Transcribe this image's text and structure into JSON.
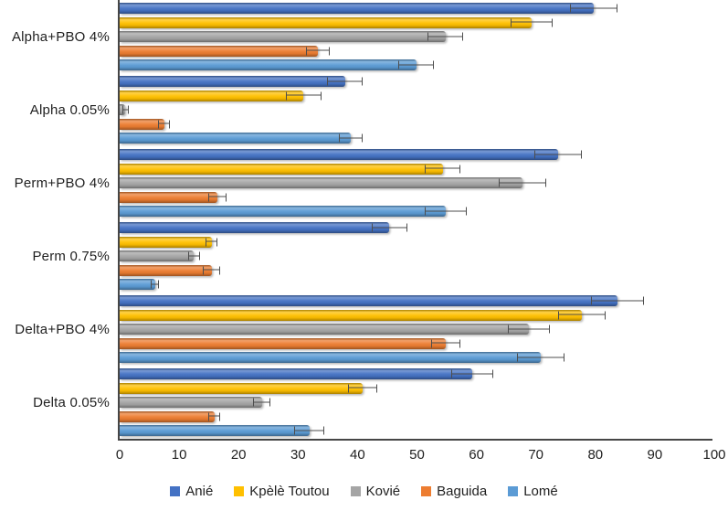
{
  "chart_data": {
    "type": "bar",
    "orientation": "horizontal",
    "title": "",
    "xlabel": "",
    "ylabel": "",
    "xlim": [
      0,
      100
    ],
    "x_ticks": [
      0,
      10,
      20,
      30,
      40,
      50,
      60,
      70,
      80,
      90,
      100
    ],
    "grid": false,
    "legend_position": "bottom",
    "error_bar_color": "#4d4d4d",
    "axis_color": "#464646",
    "categories": [
      "Alpha+PBO 4%",
      "Alpha 0.05%",
      "Perm+PBO 4%",
      "Perm 0.75%",
      "Delta+PBO 4%",
      "Delta 0.05%"
    ],
    "series": [
      {
        "name": "Anié",
        "color": "#4472C4",
        "values": [
          80,
          38,
          74,
          45.5,
          84,
          59.5
        ],
        "errors": [
          4,
          3,
          4,
          3,
          4.5,
          3.5
        ]
      },
      {
        "name": "Kpèlè Toutou",
        "color": "#FFC000",
        "values": [
          69.5,
          31,
          54.5,
          15.5,
          78,
          41
        ],
        "errors": [
          3.5,
          3,
          3,
          1,
          4,
          2.5
        ]
      },
      {
        "name": "Kovié",
        "color": "#A5A5A5",
        "values": [
          55,
          1,
          68,
          12.5,
          69,
          24
        ],
        "errors": [
          3,
          0.5,
          4,
          1,
          3.5,
          1.5
        ]
      },
      {
        "name": "Baguida",
        "color": "#ED7D31",
        "values": [
          33.5,
          7.5,
          16.5,
          15.5,
          55,
          16
        ],
        "errors": [
          2,
          1,
          1.5,
          1.5,
          2.5,
          1
        ]
      },
      {
        "name": "Lomé",
        "color": "#5B9BD5",
        "values": [
          50,
          39,
          55,
          6,
          71,
          32
        ],
        "errors": [
          3,
          2,
          3.5,
          0.7,
          4,
          2.5
        ]
      }
    ]
  }
}
